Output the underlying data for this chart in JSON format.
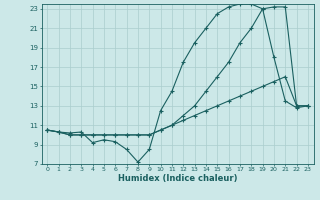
{
  "xlabel": "Humidex (Indice chaleur)",
  "bg_color": "#cce8e8",
  "grid_color": "#aacece",
  "line_color": "#1a6060",
  "xlim": [
    -0.5,
    23.5
  ],
  "ylim": [
    7,
    23.5
  ],
  "xticks": [
    0,
    1,
    2,
    3,
    4,
    5,
    6,
    7,
    8,
    9,
    10,
    11,
    12,
    13,
    14,
    15,
    16,
    17,
    18,
    19,
    20,
    21,
    22,
    23
  ],
  "yticks": [
    7,
    9,
    11,
    13,
    15,
    17,
    19,
    21,
    23
  ],
  "curve1_x": [
    0,
    1,
    2,
    3,
    4,
    5,
    6,
    7,
    8,
    9,
    10,
    11,
    12,
    13,
    14,
    15,
    16,
    17,
    18,
    19,
    20,
    21,
    22,
    23
  ],
  "curve1_y": [
    10.5,
    10.3,
    10.2,
    10.3,
    9.2,
    9.5,
    9.3,
    8.5,
    7.2,
    8.5,
    12.5,
    14.5,
    17.5,
    19.5,
    21.0,
    22.5,
    23.2,
    23.5,
    23.5,
    23.0,
    18.0,
    13.5,
    12.8,
    13.0
  ],
  "curve2_x": [
    0,
    1,
    2,
    3,
    4,
    5,
    6,
    7,
    8,
    9,
    10,
    11,
    12,
    13,
    14,
    15,
    16,
    17,
    18,
    19,
    20,
    21,
    22,
    23
  ],
  "curve2_y": [
    10.5,
    10.3,
    10.0,
    10.0,
    10.0,
    10.0,
    10.0,
    10.0,
    10.0,
    10.0,
    10.5,
    11.0,
    12.0,
    13.0,
    14.5,
    16.0,
    17.5,
    19.5,
    21.0,
    23.0,
    23.2,
    23.2,
    13.0,
    13.0
  ],
  "curve3_x": [
    0,
    1,
    2,
    3,
    4,
    5,
    6,
    7,
    8,
    9,
    10,
    11,
    12,
    13,
    14,
    15,
    16,
    17,
    18,
    19,
    20,
    21,
    22,
    23
  ],
  "curve3_y": [
    10.5,
    10.3,
    10.0,
    10.0,
    10.0,
    10.0,
    10.0,
    10.0,
    10.0,
    10.0,
    10.5,
    11.0,
    11.5,
    12.0,
    12.5,
    13.0,
    13.5,
    14.0,
    14.5,
    15.0,
    15.5,
    16.0,
    13.0,
    13.0
  ]
}
